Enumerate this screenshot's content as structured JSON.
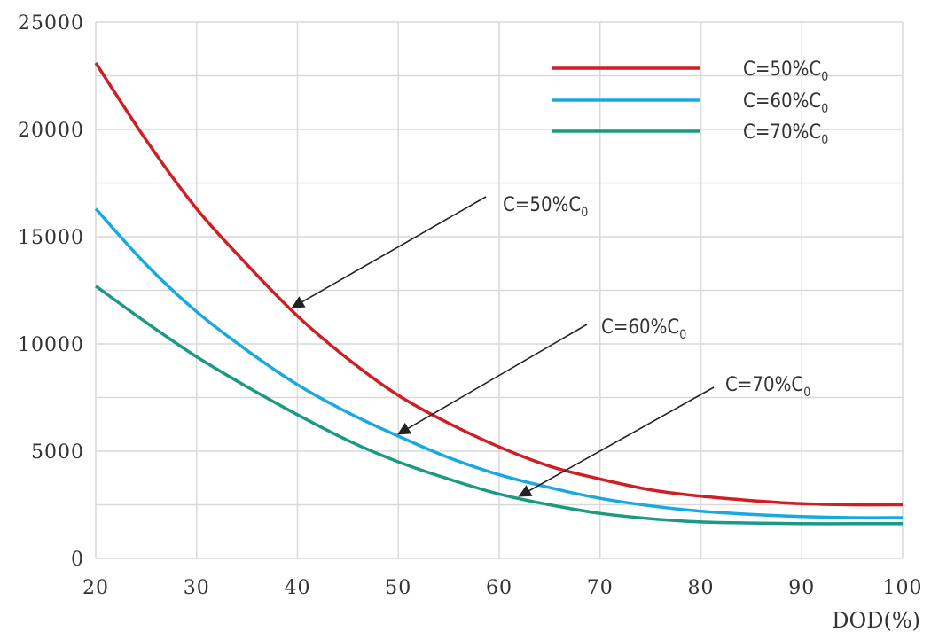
{
  "chart_data": {
    "type": "line",
    "title": "",
    "xlabel": "DOD(%)",
    "ylabel": "",
    "xlim": [
      20,
      100
    ],
    "ylim": [
      0,
      25000
    ],
    "x_ticks": [
      20,
      30,
      40,
      50,
      60,
      70,
      80,
      90,
      100
    ],
    "x_tick_labels": [
      "20",
      "30",
      "40",
      "50",
      "60",
      "70",
      "80",
      "90",
      "100"
    ],
    "y_ticks": [
      0,
      5000,
      10000,
      15000,
      20000,
      25000
    ],
    "y_tick_labels": [
      "0",
      "5000",
      "10000",
      "15000",
      "20000",
      "25000"
    ],
    "grid": true,
    "legend_position": "top-right",
    "x": [
      20,
      25,
      30,
      35,
      40,
      45,
      50,
      55,
      60,
      65,
      70,
      75,
      80,
      85,
      90,
      95,
      100
    ],
    "series": [
      {
        "name": "C=50%C0",
        "color": "#d01f23",
        "values": [
          23100,
          19500,
          16300,
          13700,
          11300,
          9300,
          7600,
          6300,
          5200,
          4300,
          3700,
          3200,
          2900,
          2700,
          2550,
          2500,
          2500
        ]
      },
      {
        "name": "C=60%C0",
        "color": "#1aa8e0",
        "values": [
          16300,
          13700,
          11500,
          9700,
          8100,
          6800,
          5700,
          4700,
          3900,
          3300,
          2800,
          2450,
          2200,
          2050,
          1950,
          1900,
          1900
        ]
      },
      {
        "name": "C=70%C0",
        "color": "#1a9a85",
        "values": [
          12700,
          11000,
          9400,
          8000,
          6700,
          5500,
          4500,
          3700,
          3000,
          2500,
          2100,
          1850,
          1700,
          1650,
          1620,
          1620,
          1620
        ]
      }
    ],
    "legend": [
      {
        "label": "C=50%C",
        "sub": "0",
        "color": "#d01f23"
      },
      {
        "label": "C=60%C",
        "sub": "0",
        "color": "#1aa8e0"
      },
      {
        "label": "C=70%C",
        "sub": "0",
        "color": "#1a9a85"
      }
    ],
    "annotations": [
      {
        "label": "C=50%C",
        "sub": "0",
        "target_x": 39.5,
        "target_y": 11700
      },
      {
        "label": "C=60%C",
        "sub": "0",
        "target_x": 50,
        "target_y": 5800
      },
      {
        "label": "C=70%C",
        "sub": "0",
        "target_x": 62,
        "target_y": 2900
      }
    ]
  }
}
